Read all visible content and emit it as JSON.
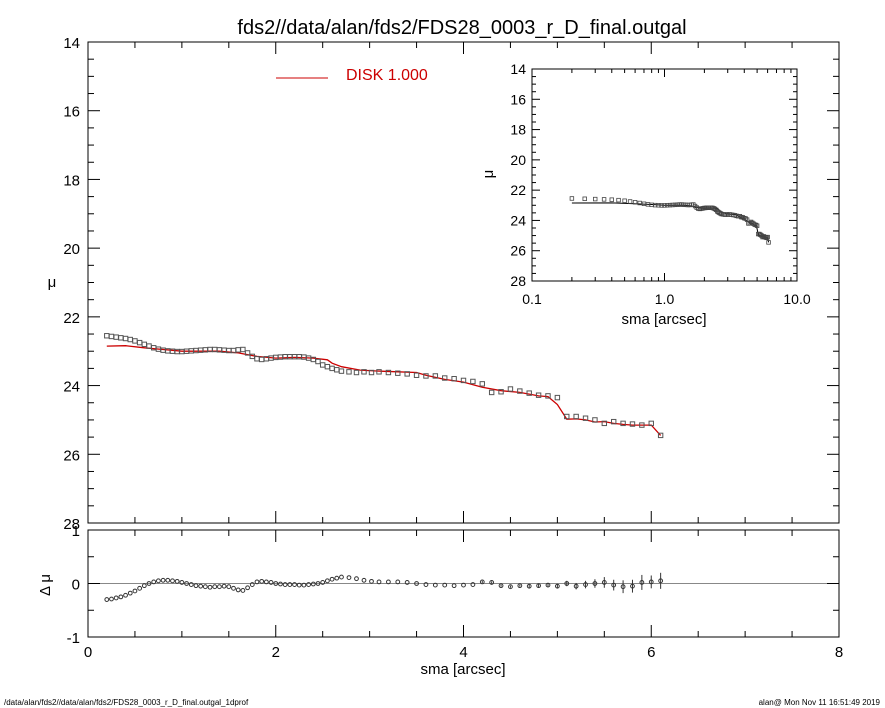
{
  "title": "fds2//data/alan/fds2/FDS28_0003_r_D_final.outgal",
  "footer": {
    "left": "/data/alan/fds2//data/alan/fds2/FDS28_0003_r_D_final.outgal_1dprof",
    "right": "alan@  Mon Nov 11 16:51:49 2019"
  },
  "colors": {
    "model": "#cc0000",
    "data": "#555555",
    "axes": "#000000",
    "zero_line": "#888888"
  },
  "chart_data": [
    {
      "type": "scatter",
      "panel": "main",
      "xlabel": "sma [arcsec]",
      "ylabel": "μ",
      "xlim": [
        0,
        8
      ],
      "ylim": [
        28,
        14
      ],
      "x_ticks": [
        "0",
        "2",
        "4",
        "6",
        "8"
      ],
      "y_ticks": [
        "14",
        "16",
        "18",
        "20",
        "22",
        "24",
        "26",
        "28"
      ],
      "legend": {
        "label": "DISK  1.000",
        "placement": "top-center"
      },
      "series": [
        {
          "name": "data",
          "kind": "markers",
          "x": [
            0.2,
            0.25,
            0.3,
            0.35,
            0.4,
            0.45,
            0.5,
            0.55,
            0.6,
            0.65,
            0.7,
            0.75,
            0.8,
            0.85,
            0.9,
            0.95,
            1.0,
            1.05,
            1.1,
            1.15,
            1.2,
            1.25,
            1.3,
            1.35,
            1.4,
            1.45,
            1.5,
            1.55,
            1.6,
            1.65,
            1.7,
            1.75,
            1.8,
            1.85,
            1.9,
            1.95,
            2.0,
            2.05,
            2.1,
            2.15,
            2.2,
            2.25,
            2.3,
            2.35,
            2.4,
            2.45,
            2.5,
            2.55,
            2.6,
            2.65,
            2.7,
            2.78,
            2.86,
            2.94,
            3.02,
            3.1,
            3.2,
            3.3,
            3.4,
            3.5,
            3.6,
            3.7,
            3.8,
            3.9,
            4.0,
            4.1,
            4.2,
            4.3,
            4.4,
            4.5,
            4.6,
            4.7,
            4.8,
            4.9,
            5.0,
            5.1,
            5.2,
            5.3,
            5.4,
            5.5,
            5.6,
            5.7,
            5.8,
            5.9,
            6.0,
            6.1
          ],
          "y": [
            22.55,
            22.57,
            22.59,
            22.61,
            22.63,
            22.66,
            22.7,
            22.75,
            22.8,
            22.85,
            22.9,
            22.94,
            22.97,
            22.99,
            23.0,
            23.01,
            23.01,
            23.0,
            22.99,
            22.98,
            22.97,
            22.96,
            22.95,
            22.95,
            22.96,
            22.97,
            22.98,
            22.98,
            22.96,
            22.95,
            23.05,
            23.15,
            23.22,
            23.24,
            23.22,
            23.2,
            23.18,
            23.17,
            23.16,
            23.16,
            23.16,
            23.16,
            23.17,
            23.2,
            23.24,
            23.3,
            23.4,
            23.45,
            23.5,
            23.54,
            23.58,
            23.6,
            23.62,
            23.6,
            23.62,
            23.6,
            23.62,
            23.64,
            23.66,
            23.7,
            23.72,
            23.72,
            23.78,
            23.8,
            23.85,
            23.88,
            23.95,
            24.2,
            24.18,
            24.1,
            24.16,
            24.22,
            24.28,
            24.3,
            24.35,
            24.9,
            24.9,
            24.95,
            25.0,
            25.1,
            25.05,
            25.1,
            25.12,
            25.15,
            25.1,
            25.45
          ]
        },
        {
          "name": "DISK  1.000",
          "kind": "line",
          "x": [
            0.2,
            0.4,
            0.6,
            0.8,
            1.0,
            1.2,
            1.4,
            1.6,
            1.8,
            2.0,
            2.2,
            2.4,
            2.55,
            2.6,
            2.7,
            2.9,
            3.1,
            3.3,
            3.5,
            3.6,
            3.8,
            4.0,
            4.2,
            4.4,
            4.6,
            4.8,
            4.9,
            5.0,
            5.1,
            5.2,
            5.3,
            5.4,
            5.5,
            5.6,
            5.7,
            5.8,
            5.9,
            6.0,
            6.1
          ],
          "y": [
            22.85,
            22.84,
            22.9,
            22.95,
            23.0,
            23.0,
            23.0,
            23.05,
            23.15,
            23.2,
            23.18,
            23.2,
            23.25,
            23.35,
            23.45,
            23.55,
            23.58,
            23.6,
            23.62,
            23.7,
            23.82,
            23.9,
            24.05,
            24.15,
            24.2,
            24.3,
            24.32,
            24.55,
            24.98,
            24.97,
            25.0,
            25.06,
            25.05,
            25.1,
            25.13,
            25.15,
            25.15,
            25.15,
            25.45
          ]
        }
      ]
    },
    {
      "type": "scatter",
      "panel": "residual",
      "xlabel": "sma [arcsec]",
      "ylabel": "Δ μ",
      "xlim": [
        0,
        8
      ],
      "ylim": [
        -1,
        1
      ],
      "x_ticks": [
        "0",
        "2",
        "4",
        "6",
        "8"
      ],
      "y_ticks": [
        "1",
        "0",
        "-1"
      ],
      "series": [
        {
          "name": "residual",
          "x": [
            0.2,
            0.25,
            0.3,
            0.35,
            0.4,
            0.45,
            0.5,
            0.55,
            0.6,
            0.65,
            0.7,
            0.75,
            0.8,
            0.85,
            0.9,
            0.95,
            1.0,
            1.05,
            1.1,
            1.15,
            1.2,
            1.25,
            1.3,
            1.35,
            1.4,
            1.45,
            1.5,
            1.55,
            1.6,
            1.65,
            1.7,
            1.75,
            1.8,
            1.85,
            1.9,
            1.95,
            2.0,
            2.05,
            2.1,
            2.15,
            2.2,
            2.25,
            2.3,
            2.35,
            2.4,
            2.45,
            2.5,
            2.55,
            2.6,
            2.65,
            2.7,
            2.78,
            2.86,
            2.94,
            3.02,
            3.1,
            3.2,
            3.3,
            3.4,
            3.5,
            3.6,
            3.7,
            3.8,
            3.9,
            4.0,
            4.1,
            4.2,
            4.3,
            4.4,
            4.5,
            4.6,
            4.7,
            4.8,
            4.9,
            5.0,
            5.1,
            5.2,
            5.3,
            5.4,
            5.5,
            5.6,
            5.7,
            5.8,
            5.9,
            6.0,
            6.1
          ],
          "y": [
            -0.3,
            -0.29,
            -0.27,
            -0.25,
            -0.22,
            -0.18,
            -0.14,
            -0.09,
            -0.04,
            0.0,
            0.03,
            0.05,
            0.06,
            0.06,
            0.05,
            0.04,
            0.02,
            0.0,
            -0.02,
            -0.04,
            -0.05,
            -0.06,
            -0.07,
            -0.06,
            -0.06,
            -0.05,
            -0.06,
            -0.09,
            -0.12,
            -0.13,
            -0.08,
            -0.02,
            0.03,
            0.04,
            0.03,
            0.02,
            0.0,
            -0.01,
            -0.02,
            -0.02,
            -0.02,
            -0.03,
            -0.03,
            -0.02,
            -0.01,
            0.0,
            0.02,
            0.05,
            0.08,
            0.1,
            0.12,
            0.11,
            0.09,
            0.06,
            0.04,
            0.03,
            0.03,
            0.03,
            0.02,
            0.0,
            -0.02,
            -0.03,
            -0.03,
            -0.04,
            -0.03,
            -0.02,
            0.03,
            0.02,
            -0.04,
            -0.06,
            -0.04,
            -0.05,
            -0.04,
            -0.03,
            -0.05,
            0.0,
            -0.05,
            -0.02,
            0.0,
            0.02,
            -0.03,
            -0.06,
            -0.05,
            0.02,
            0.03,
            0.05
          ],
          "err": [
            0.01,
            0.01,
            0.01,
            0.01,
            0.01,
            0.01,
            0.01,
            0.01,
            0.01,
            0.01,
            0.01,
            0.01,
            0.01,
            0.01,
            0.01,
            0.01,
            0.01,
            0.01,
            0.01,
            0.01,
            0.01,
            0.01,
            0.01,
            0.01,
            0.01,
            0.01,
            0.01,
            0.01,
            0.01,
            0.01,
            0.01,
            0.01,
            0.01,
            0.01,
            0.01,
            0.01,
            0.01,
            0.01,
            0.01,
            0.01,
            0.01,
            0.01,
            0.01,
            0.01,
            0.01,
            0.01,
            0.01,
            0.01,
            0.01,
            0.01,
            0.01,
            0.01,
            0.01,
            0.01,
            0.01,
            0.01,
            0.01,
            0.01,
            0.01,
            0.01,
            0.01,
            0.01,
            0.01,
            0.01,
            0.01,
            0.01,
            0.02,
            0.02,
            0.02,
            0.02,
            0.02,
            0.03,
            0.03,
            0.03,
            0.04,
            0.05,
            0.06,
            0.07,
            0.08,
            0.1,
            0.1,
            0.12,
            0.12,
            0.14,
            0.12,
            0.15
          ]
        }
      ]
    },
    {
      "type": "scatter",
      "panel": "inset",
      "xlabel": "sma [arcsec]",
      "ylabel": "μ",
      "xscale": "log",
      "xlim": [
        0.1,
        10.0
      ],
      "ylim": [
        28,
        14
      ],
      "x_ticks": [
        "0.1",
        "1.0",
        "10.0"
      ],
      "y_ticks": [
        "14",
        "16",
        "18",
        "20",
        "22",
        "24",
        "26",
        "28"
      ],
      "series": [
        {
          "name": "data",
          "x": [
            0.2,
            0.25,
            0.3,
            0.35,
            0.4,
            0.45,
            0.5,
            0.55,
            0.6,
            0.65,
            0.7,
            0.75,
            0.8,
            0.85,
            0.9,
            0.95,
            1.0,
            1.05,
            1.1,
            1.15,
            1.2,
            1.25,
            1.3,
            1.35,
            1.4,
            1.45,
            1.5,
            1.55,
            1.6,
            1.65,
            1.7,
            1.75,
            1.8,
            1.85,
            1.9,
            1.95,
            2.0,
            2.05,
            2.1,
            2.15,
            2.2,
            2.25,
            2.3,
            2.35,
            2.4,
            2.45,
            2.5,
            2.55,
            2.6,
            2.65,
            2.7,
            2.78,
            2.86,
            2.94,
            3.02,
            3.1,
            3.2,
            3.3,
            3.4,
            3.5,
            3.6,
            3.7,
            3.8,
            3.9,
            4.0,
            4.1,
            4.2,
            4.3,
            4.4,
            4.5,
            4.6,
            4.7,
            4.8,
            4.9,
            5.0,
            5.1,
            5.2,
            5.3,
            5.4,
            5.5,
            5.6,
            5.7,
            5.8,
            5.9,
            6.0,
            6.1
          ],
          "y": [
            22.55,
            22.57,
            22.59,
            22.61,
            22.63,
            22.66,
            22.7,
            22.75,
            22.8,
            22.85,
            22.9,
            22.94,
            22.97,
            22.99,
            23.0,
            23.01,
            23.01,
            23.0,
            22.99,
            22.98,
            22.97,
            22.96,
            22.95,
            22.95,
            22.96,
            22.97,
            22.98,
            22.98,
            22.96,
            22.95,
            23.05,
            23.15,
            23.22,
            23.24,
            23.22,
            23.2,
            23.18,
            23.17,
            23.16,
            23.16,
            23.16,
            23.16,
            23.17,
            23.2,
            23.24,
            23.3,
            23.4,
            23.45,
            23.5,
            23.54,
            23.58,
            23.6,
            23.62,
            23.6,
            23.62,
            23.6,
            23.62,
            23.64,
            23.66,
            23.7,
            23.72,
            23.72,
            23.78,
            23.8,
            23.85,
            23.88,
            23.95,
            24.2,
            24.18,
            24.1,
            24.16,
            24.22,
            24.28,
            24.3,
            24.35,
            24.9,
            24.9,
            24.95,
            25.0,
            25.1,
            25.05,
            25.1,
            25.12,
            25.15,
            25.1,
            25.45
          ]
        },
        {
          "name": "model",
          "x": [
            0.2,
            0.4,
            0.6,
            0.8,
            1.0,
            1.2,
            1.4,
            1.6,
            1.8,
            2.0,
            2.2,
            2.4,
            2.55,
            2.6,
            2.7,
            2.9,
            3.1,
            3.3,
            3.5,
            3.6,
            3.8,
            4.0,
            4.2,
            4.4,
            4.6,
            4.8,
            4.9,
            5.0,
            5.1,
            5.2,
            5.3,
            5.4,
            5.5,
            5.6,
            5.7,
            5.8,
            5.9,
            6.0,
            6.1
          ],
          "y": [
            22.85,
            22.84,
            22.9,
            22.95,
            23.0,
            23.0,
            23.0,
            23.05,
            23.15,
            23.2,
            23.18,
            23.2,
            23.25,
            23.35,
            23.45,
            23.55,
            23.58,
            23.6,
            23.62,
            23.7,
            23.82,
            23.9,
            24.05,
            24.15,
            24.2,
            24.3,
            24.32,
            24.55,
            24.98,
            24.97,
            25.0,
            25.06,
            25.05,
            25.1,
            25.13,
            25.15,
            25.15,
            25.15,
            25.45
          ]
        }
      ]
    }
  ]
}
